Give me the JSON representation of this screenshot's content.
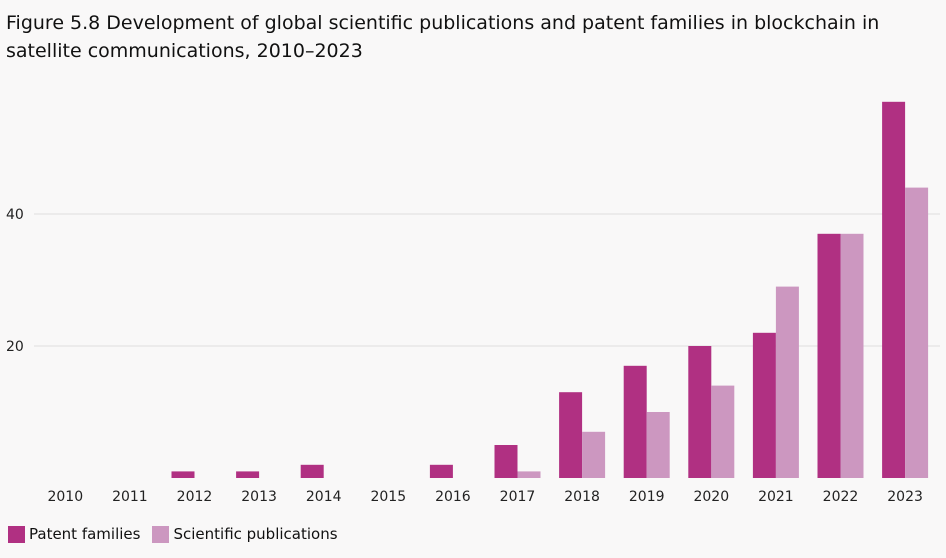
{
  "title": "Figure 5.8 Development of global scientific publications and patent families in blockchain in satellite communications, 2010–2023",
  "chart_data": {
    "type": "bar",
    "categories": [
      "2010",
      "2011",
      "2012",
      "2013",
      "2014",
      "2015",
      "2016",
      "2017",
      "2018",
      "2019",
      "2020",
      "2021",
      "2022",
      "2023"
    ],
    "series": [
      {
        "name": "Patent families",
        "color": "#b03082",
        "values": [
          0,
          0,
          1,
          1,
          2,
          0,
          2,
          5,
          13,
          17,
          20,
          22,
          37,
          57
        ]
      },
      {
        "name": "Scientific publications",
        "color": "#cc97c0",
        "values": [
          0,
          0,
          0,
          0,
          0,
          0,
          0,
          1,
          7,
          10,
          14,
          29,
          37,
          44
        ]
      }
    ],
    "ylim": [
      0,
      60
    ],
    "yticks": [
      20,
      40
    ],
    "grid": true,
    "legend_position": "bottom-left"
  }
}
